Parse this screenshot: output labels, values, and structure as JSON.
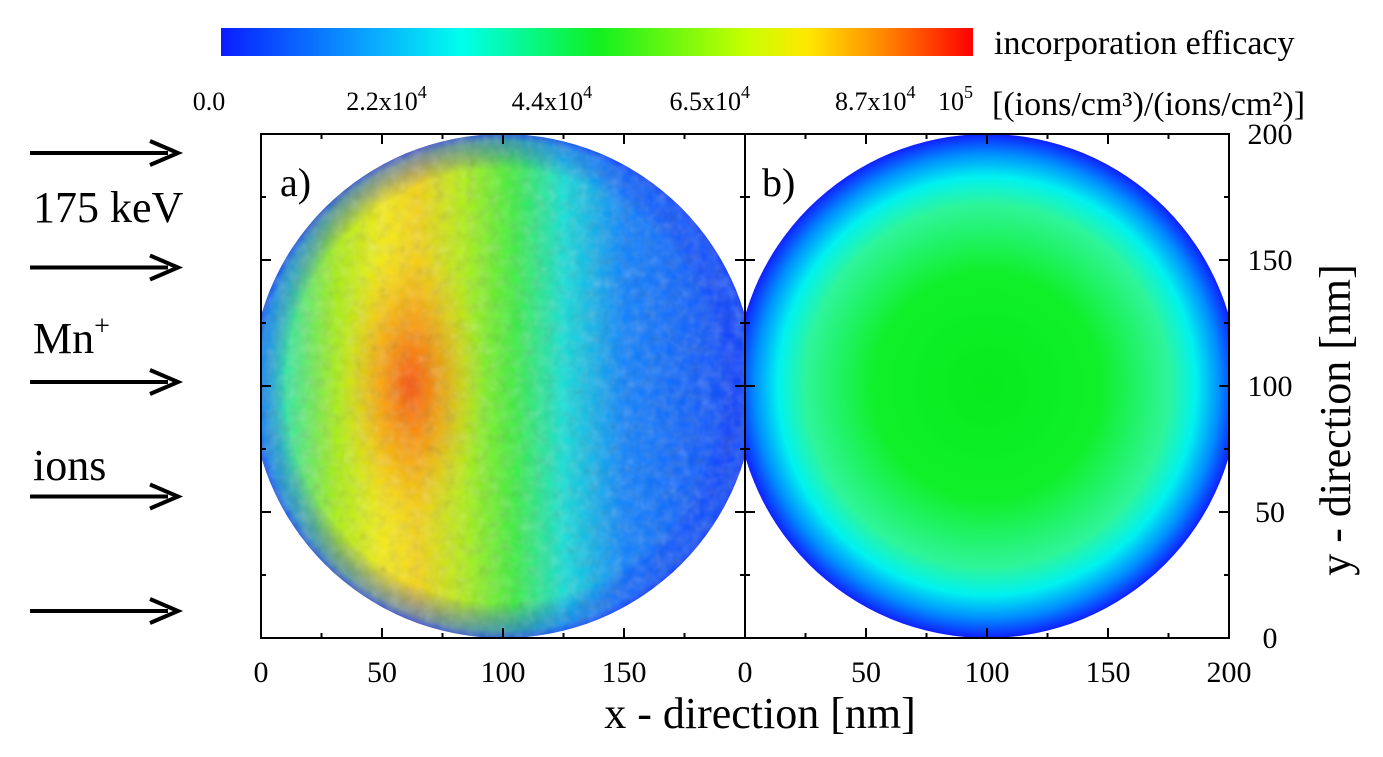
{
  "chart_data": {
    "type": "heatmap",
    "colorbar": {
      "title": "incorporation efficacy",
      "unit": "[(ions/cm³)/(ions/cm²)]",
      "ticks": [
        {
          "label": "0.0",
          "value": 0
        },
        {
          "label": "2.2x10",
          "exp": "4",
          "value": 22000
        },
        {
          "label": "4.4x10",
          "exp": "4",
          "value": 44000
        },
        {
          "label": "6.5x10",
          "exp": "4",
          "value": 65000
        },
        {
          "label": "8.7x10",
          "exp": "4",
          "value": 87000
        },
        {
          "label": "10",
          "exp": "5",
          "value": 100000
        }
      ],
      "range": [
        0,
        100000
      ],
      "colormap": [
        "#0000ff",
        "#00ffff",
        "#00ff00",
        "#ffff00",
        "#ff0000"
      ]
    },
    "xlabel": "x - direction [nm]",
    "ylabel": "y - direction [nm]",
    "xlim": [
      0,
      200
    ],
    "ylim": [
      0,
      200
    ],
    "x_ticks": [
      0,
      50,
      100,
      150,
      200
    ],
    "x_ticks_panel_a": [
      0,
      50,
      100,
      150
    ],
    "y_ticks": [
      0,
      50,
      100,
      150,
      200
    ],
    "panels": [
      {
        "label": "a)",
        "description_values": {
          "peak_x_nm": 60,
          "peak_value": 90000,
          "edge_value_left": 30000,
          "right_value": 8000
        }
      },
      {
        "label": "b)",
        "description_values": {
          "center_value": 50000,
          "edge_value": 8000
        }
      }
    ],
    "annotation": {
      "arrow_count": 5,
      "lines": [
        {
          "text": "175 keV"
        },
        {
          "text": "Mn",
          "sup": "+"
        },
        {
          "text": "ions"
        }
      ]
    }
  }
}
